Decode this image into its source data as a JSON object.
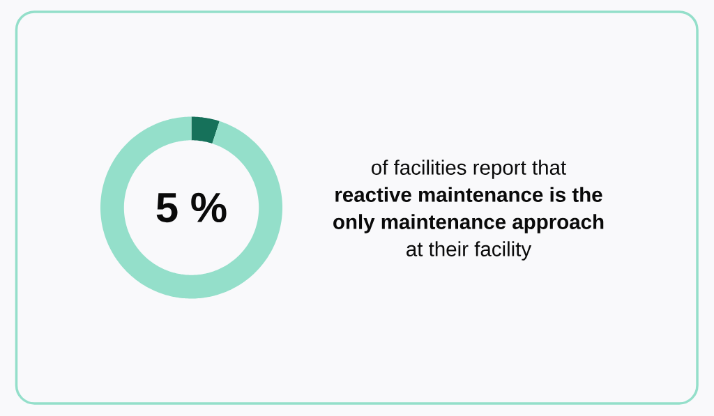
{
  "chart_data": {
    "type": "donut",
    "categories": [
      null,
      null
    ],
    "values": [
      5,
      95
    ],
    "colors": [
      "#16715a",
      "#94dfca"
    ],
    "annotations": [
      "5 %",
      "of facilities report that **reactive maintenance is the only maintenance approach** at their facility"
    ]
  }
}
